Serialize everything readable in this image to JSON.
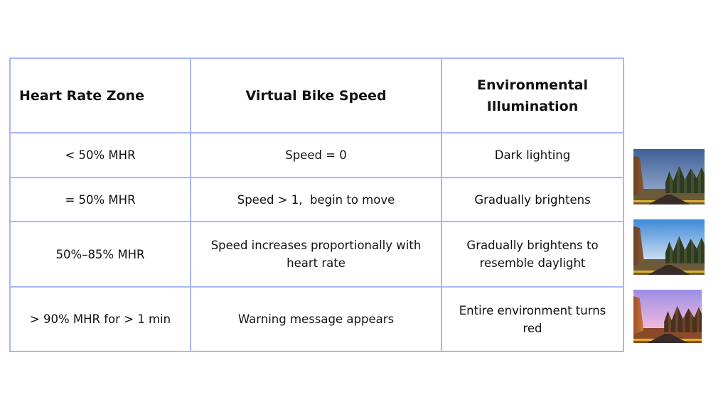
{
  "table": {
    "headers": [
      "Heart Rate Zone",
      "Virtual Bike Speed",
      "Environmental Illumination"
    ],
    "rows": [
      [
        "< 50% MHR",
        "Speed = 0",
        "Dark lighting"
      ],
      [
        "= 50% MHR",
        "Speed > 1,  begin to move",
        "Gradually brightens"
      ],
      [
        "50%–85% MHR",
        "Speed increases proportionally with heart rate",
        "Gradually brightens to resemble daylight"
      ],
      [
        "> 90% MHR for > 1 min",
        "Warning message appears",
        "Entire environment turns red"
      ]
    ]
  },
  "thumbnails": [
    {
      "scene": "dark-lighting",
      "sky_top": "#3f5f96",
      "sky_bottom": "#8aa0c4"
    },
    {
      "scene": "daylight",
      "sky_top": "#3e8ad8",
      "sky_bottom": "#c9dcf2"
    },
    {
      "scene": "red-environment",
      "sky_top": "#9b8ee6",
      "sky_bottom": "#f0b9df"
    }
  ],
  "colors": {
    "border": "#a7b6f5"
  }
}
